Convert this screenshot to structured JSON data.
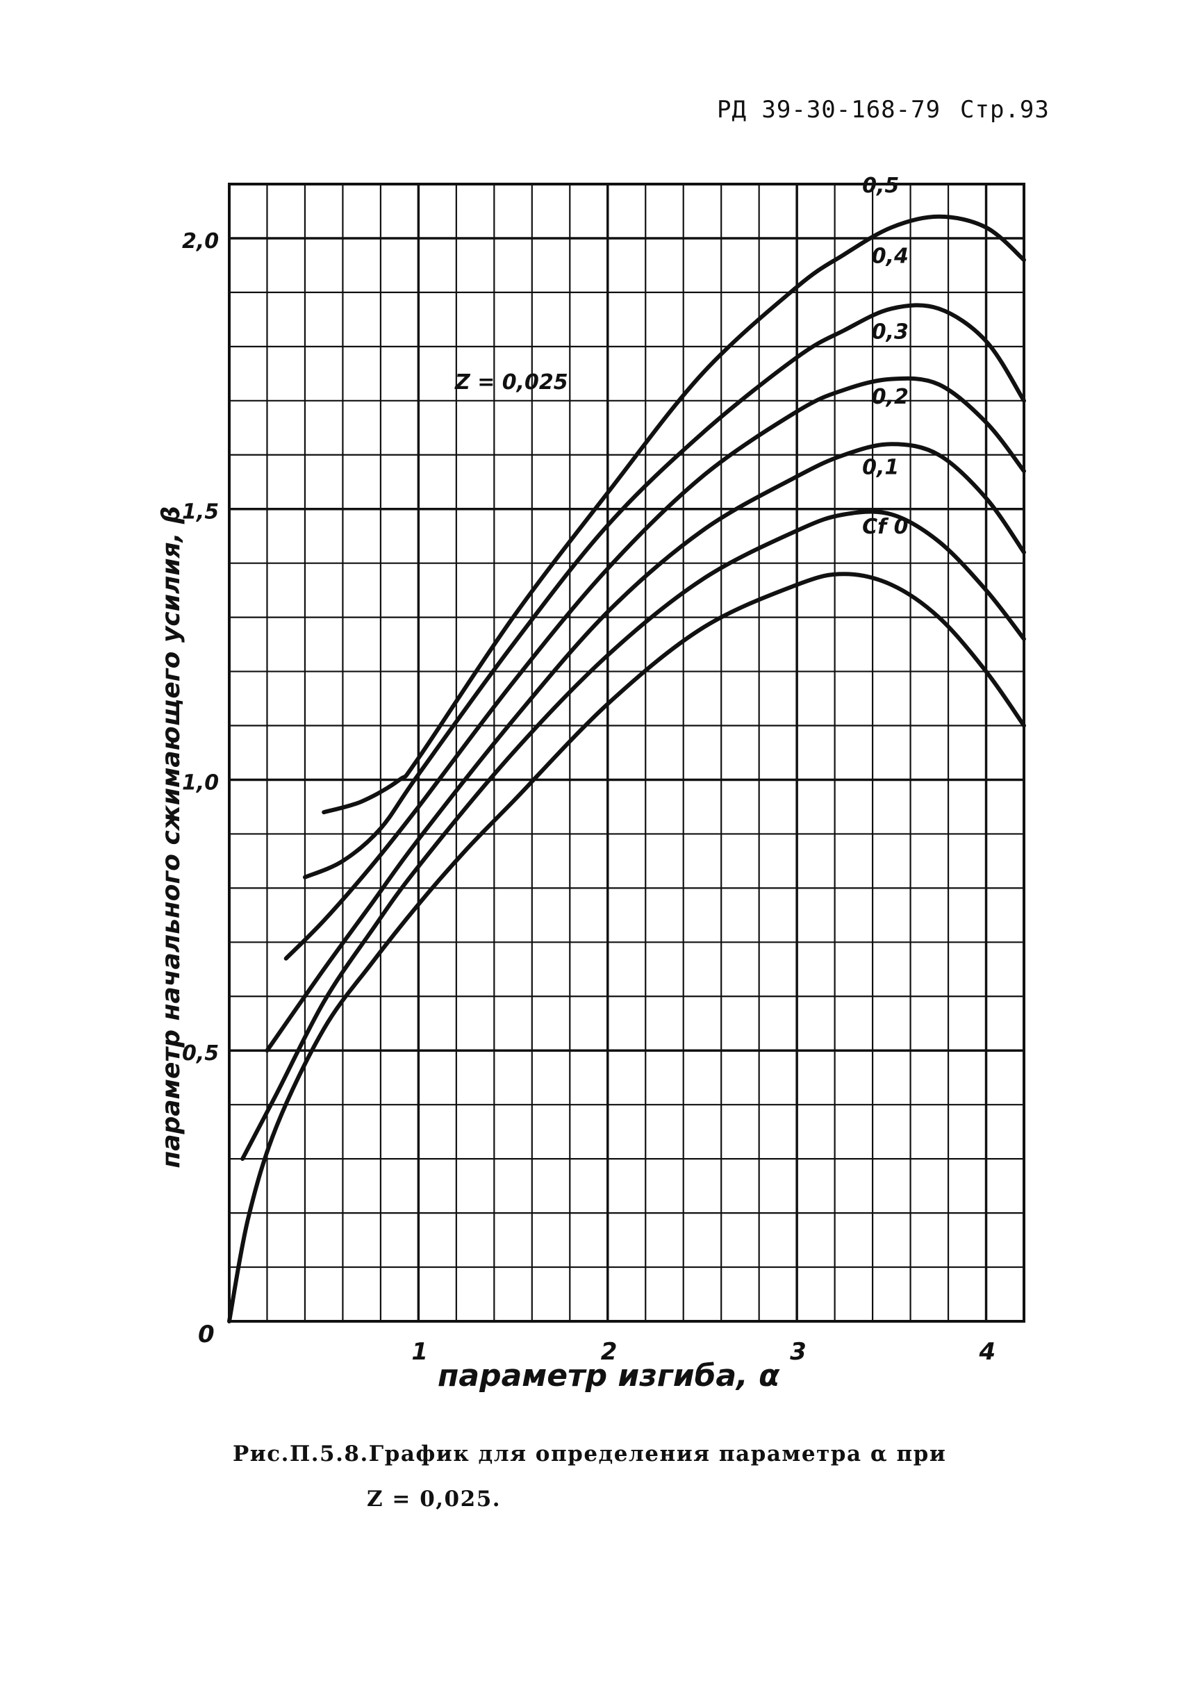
{
  "header": {
    "doc_code": "РД 39-30-168-79",
    "page": "Стр.93"
  },
  "caption": {
    "line1": "Рис.П.5.8.График для определения параметра α при",
    "line2": "Z = 0,025."
  },
  "chart_data": {
    "type": "line",
    "xlabel": "параметр изгиба, α",
    "ylabel": "параметр начального сжимающего усилия, β",
    "annotation": "Z = 0,025",
    "xlim": [
      0,
      4.2
    ],
    "ylim": [
      0,
      2.1
    ],
    "x_ticks": [
      {
        "value": 0,
        "label": "0"
      },
      {
        "value": 1,
        "label": "1"
      },
      {
        "value": 2,
        "label": "2"
      },
      {
        "value": 3,
        "label": "3"
      },
      {
        "value": 4,
        "label": "4"
      }
    ],
    "y_ticks": [
      {
        "value": 0.5,
        "label": "0,5"
      },
      {
        "value": 1.0,
        "label": "1,0"
      },
      {
        "value": 1.5,
        "label": "1,5"
      },
      {
        "value": 2.0,
        "label": "2,0"
      }
    ],
    "grid": true,
    "series": [
      {
        "name": "Cf 0",
        "x": [
          0.0,
          0.1,
          0.25,
          0.5,
          0.75,
          1.0,
          1.25,
          1.5,
          2.0,
          2.5,
          3.0,
          3.25,
          3.5,
          3.75,
          4.0,
          4.2
        ],
        "y": [
          0.0,
          0.19,
          0.36,
          0.54,
          0.66,
          0.77,
          0.87,
          0.96,
          1.14,
          1.28,
          1.36,
          1.38,
          1.36,
          1.3,
          1.2,
          1.1
        ]
      },
      {
        "name": "0,1",
        "x": [
          0.07,
          0.25,
          0.5,
          0.75,
          1.0,
          1.5,
          2.0,
          2.5,
          3.0,
          3.25,
          3.5,
          3.75,
          4.0,
          4.2
        ],
        "y": [
          0.3,
          0.42,
          0.59,
          0.72,
          0.84,
          1.05,
          1.23,
          1.37,
          1.46,
          1.49,
          1.49,
          1.44,
          1.35,
          1.26
        ]
      },
      {
        "name": "0,2",
        "x": [
          0.2,
          0.5,
          0.75,
          1.0,
          1.5,
          2.0,
          2.5,
          3.0,
          3.25,
          3.5,
          3.75,
          4.0,
          4.2
        ],
        "y": [
          0.5,
          0.65,
          0.77,
          0.89,
          1.11,
          1.31,
          1.46,
          1.56,
          1.6,
          1.62,
          1.6,
          1.52,
          1.42
        ]
      },
      {
        "name": "0,3",
        "x": [
          0.3,
          0.5,
          0.75,
          1.0,
          1.5,
          2.0,
          2.5,
          3.0,
          3.25,
          3.5,
          3.75,
          4.0,
          4.2
        ],
        "y": [
          0.67,
          0.74,
          0.84,
          0.95,
          1.18,
          1.39,
          1.56,
          1.68,
          1.72,
          1.74,
          1.73,
          1.66,
          1.57
        ]
      },
      {
        "name": "0,4",
        "x": [
          0.4,
          0.6,
          0.8,
          1.0,
          1.5,
          2.0,
          2.5,
          3.0,
          3.25,
          3.5,
          3.75,
          4.0,
          4.2
        ],
        "y": [
          0.82,
          0.85,
          0.91,
          1.01,
          1.25,
          1.47,
          1.64,
          1.78,
          1.83,
          1.87,
          1.87,
          1.81,
          1.7
        ]
      },
      {
        "name": "0,5",
        "x": [
          0.5,
          0.7,
          0.9,
          1.0,
          1.5,
          2.0,
          2.5,
          3.0,
          3.25,
          3.5,
          3.75,
          4.0,
          4.2
        ],
        "y": [
          0.94,
          0.96,
          1.0,
          1.04,
          1.3,
          1.53,
          1.75,
          1.91,
          1.97,
          2.02,
          2.04,
          2.02,
          1.96
        ]
      }
    ]
  }
}
